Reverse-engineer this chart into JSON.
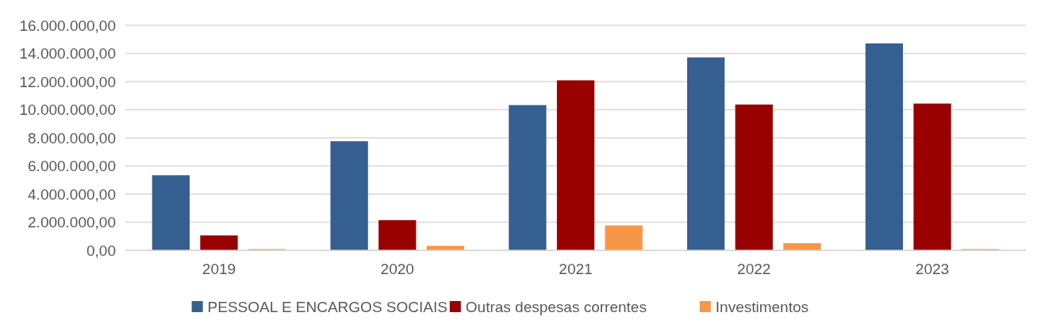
{
  "chart_data": {
    "type": "bar",
    "categories": [
      "2019",
      "2020",
      "2021",
      "2022",
      "2023"
    ],
    "series": [
      {
        "name": "PESSOAL E ENCARGOS SOCIAIS",
        "color": "#365f91",
        "values": [
          5340000,
          7760000,
          10330000,
          13720000,
          14720000
        ]
      },
      {
        "name": "Outras despesas correntes",
        "color": "#990000",
        "values": [
          1060000,
          2150000,
          12090000,
          10370000,
          10440000
        ]
      },
      {
        "name": "Investimentos",
        "color": "#f79646",
        "values": [
          90000,
          320000,
          1770000,
          510000,
          90000
        ]
      }
    ],
    "ylim": [
      0,
      16000000
    ],
    "yticks": [
      {
        "value": 0,
        "label": "0,00"
      },
      {
        "value": 2000000,
        "label": "2.000.000,00"
      },
      {
        "value": 4000000,
        "label": "4.000.000,00"
      },
      {
        "value": 6000000,
        "label": "6.000.000,00"
      },
      {
        "value": 8000000,
        "label": "8.000.000,00"
      },
      {
        "value": 10000000,
        "label": "10.000.000,00"
      },
      {
        "value": 12000000,
        "label": "12.000.000,00"
      },
      {
        "value": 14000000,
        "label": "14.000.000,00"
      },
      {
        "value": 16000000,
        "label": "16.000.000,00"
      }
    ],
    "grid": "y",
    "legend": "bottom"
  }
}
